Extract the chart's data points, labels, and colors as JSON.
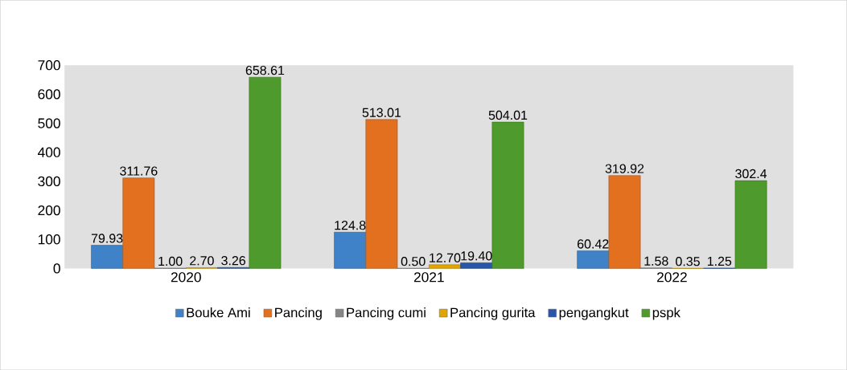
{
  "chart_data": {
    "type": "bar",
    "categories": [
      "2020",
      "2021",
      "2022"
    ],
    "series": [
      {
        "name": "Bouke Ami",
        "color": "#3f82c8",
        "values": [
          79.93,
          124.8,
          60.42
        ],
        "value_labels": [
          "79.93",
          "124.8",
          "60.42"
        ]
      },
      {
        "name": "Pancing",
        "color": "#e2701f",
        "values": [
          311.76,
          513.01,
          319.92
        ],
        "value_labels": [
          "311.76",
          "513.01",
          "319.92"
        ]
      },
      {
        "name": "Pancing cumi",
        "color": "#858585",
        "values": [
          1.0,
          0.5,
          1.58
        ],
        "value_labels": [
          "1.00",
          "0.50",
          "1.58"
        ]
      },
      {
        "name": "Pancing gurita",
        "color": "#e0a500",
        "values": [
          2.7,
          12.7,
          0.35
        ],
        "value_labels": [
          "2.70",
          "12.70",
          "0.35"
        ]
      },
      {
        "name": "pengangkut",
        "color": "#2a56a8",
        "values": [
          3.26,
          19.4,
          1.25
        ],
        "value_labels": [
          "3.26",
          "19.40",
          "1.25"
        ]
      },
      {
        "name": "pspk",
        "color": "#4f9a2c",
        "values": [
          658.61,
          504.01,
          302.4
        ],
        "value_labels": [
          "658.61",
          "504.01",
          "302.4"
        ]
      }
    ],
    "ylim": [
      0,
      700
    ],
    "yticks": [
      0,
      100,
      200,
      300,
      400,
      500,
      600,
      700
    ],
    "grid": false,
    "legend": "bottom"
  }
}
